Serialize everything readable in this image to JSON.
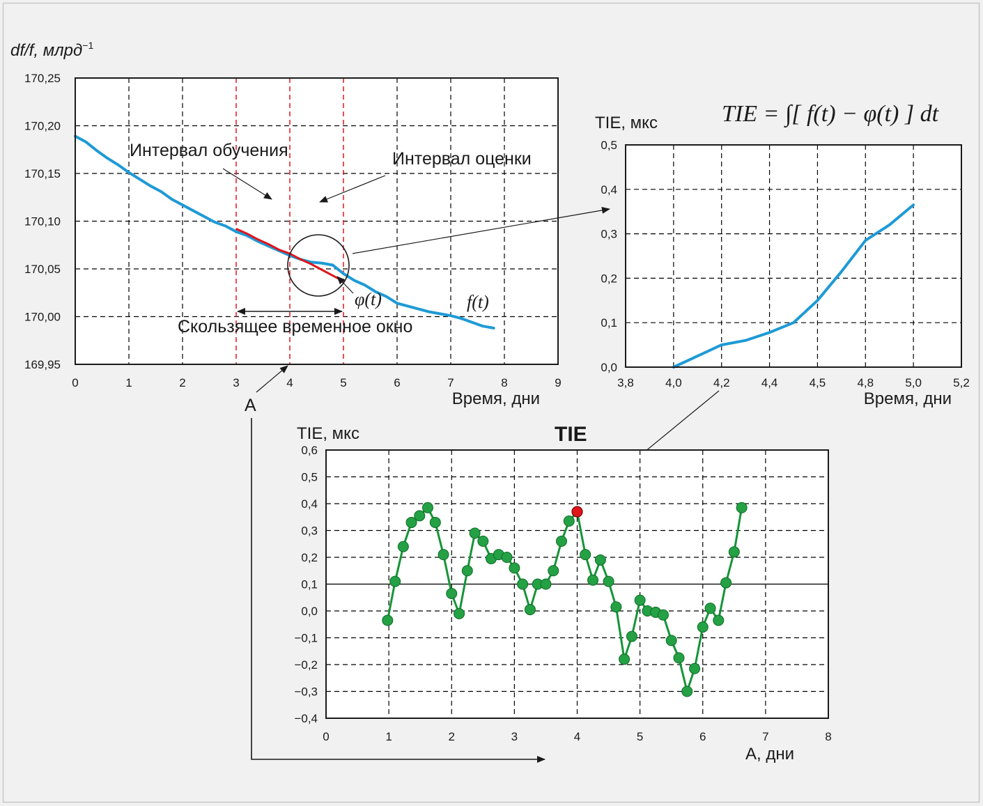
{
  "colors": {
    "background": "#f1f1f1",
    "frame": "#c8c8c8",
    "fCurve": "#1e9ad6",
    "phiCurve": "#e0151b",
    "window": "#e0151b",
    "tieLine": "#169437",
    "tieMarker": "#24a144",
    "highlight": "#e0151b",
    "grid": "#000000"
  },
  "chart_data": [
    {
      "id": "frequency",
      "type": "line",
      "ylabel": "df/f, млрд",
      "ylabel_sup": "−1",
      "xlabel": "Время, дни",
      "xlim": [
        0,
        9
      ],
      "ylim": [
        169.95,
        170.25
      ],
      "xticks": [
        0,
        1,
        2,
        3,
        4,
        5,
        6,
        7,
        8,
        9
      ],
      "xtick_labels": [
        "0",
        "1",
        "2",
        "3",
        "4",
        "5",
        "6",
        "7",
        "8",
        "9"
      ],
      "yticks": [
        169.95,
        170.0,
        170.05,
        170.1,
        170.15,
        170.2,
        170.25
      ],
      "ytick_labels": [
        "169,95",
        "170,00",
        "170,05",
        "170,10",
        "170,15",
        "170,20",
        "170,25"
      ],
      "grid": true,
      "window_lines": [
        3,
        4,
        5
      ],
      "window_label": "Скользящее временное окно",
      "training_label": "Интервал обучения",
      "evaluation_label": "Интервал оценки",
      "marker_label": "A",
      "series": [
        {
          "name": "f(t)",
          "x": [
            0,
            0.2,
            0.4,
            0.6,
            0.8,
            1.0,
            1.2,
            1.4,
            1.6,
            1.8,
            2.0,
            2.2,
            2.4,
            2.6,
            2.8,
            3.0,
            3.2,
            3.4,
            3.6,
            3.8,
            4.0,
            4.2,
            4.4,
            4.6,
            4.8,
            5.0,
            5.2,
            5.4,
            5.6,
            5.8,
            6.0,
            6.2,
            6.4,
            6.6,
            6.8,
            7.0,
            7.2,
            7.4,
            7.6,
            7.8
          ],
          "y": [
            170.189,
            170.183,
            170.174,
            170.166,
            170.159,
            170.151,
            170.144,
            170.137,
            170.131,
            170.123,
            170.117,
            170.111,
            170.105,
            170.099,
            170.095,
            170.089,
            170.085,
            170.079,
            170.074,
            170.069,
            170.064,
            170.06,
            170.057,
            170.056,
            170.054,
            170.045,
            170.038,
            170.033,
            170.026,
            170.021,
            170.014,
            170.011,
            170.008,
            170.005,
            170.003,
            170.001,
            169.998,
            169.994,
            169.99,
            169.988
          ]
        },
        {
          "name": "φ(t)",
          "x": [
            3.0,
            3.2,
            3.4,
            3.6,
            3.8,
            4.0,
            4.2,
            4.4,
            4.6,
            4.8,
            5.0
          ],
          "y": [
            170.092,
            170.087,
            170.081,
            170.076,
            170.07,
            170.066,
            170.06,
            170.055,
            170.049,
            170.043,
            170.037
          ]
        }
      ],
      "labels": {
        "f": "f(t)",
        "phi": "φ(t)"
      }
    },
    {
      "id": "tie-window",
      "type": "line",
      "ylabel": "TIE, мкс",
      "xlabel": "Время, дни",
      "formula": "TIE = ∫[ f(t) − φ(t) ] dt",
      "xtick_labels": [
        "3,8",
        "4,0",
        "4,2",
        "4,4",
        "4,5",
        "4,8",
        "5,0",
        "5,2"
      ],
      "yticks": [
        0,
        0.1,
        0.2,
        0.3,
        0.4,
        0.5
      ],
      "ytick_labels": [
        "0,0",
        "0,1",
        "0,2",
        "0,3",
        "0,4",
        "0,5"
      ],
      "ylim": [
        0,
        0.5
      ],
      "grid": true,
      "series": [
        {
          "name": "TIE",
          "x": [
            4.0,
            4.1,
            4.2,
            4.3,
            4.4,
            4.5,
            4.6,
            4.7,
            4.8,
            4.9,
            5.0
          ],
          "y": [
            0.0,
            0.025,
            0.05,
            0.06,
            0.078,
            0.1,
            0.15,
            0.215,
            0.285,
            0.32,
            0.365
          ]
        }
      ]
    },
    {
      "id": "tie-sliding",
      "type": "line",
      "title": "TIE",
      "ylabel": "TIE, мкс",
      "xlabel": "A, дни",
      "xlim": [
        0,
        8
      ],
      "ylim": [
        -0.4,
        0.6
      ],
      "xticks": [
        0,
        1,
        2,
        3,
        4,
        5,
        6,
        7,
        8
      ],
      "xtick_labels": [
        "0",
        "1",
        "2",
        "3",
        "4",
        "5",
        "6",
        "7",
        "8"
      ],
      "yticks": [
        -0.4,
        -0.3,
        -0.2,
        -0.1,
        0.0,
        0.1,
        0.2,
        0.3,
        0.4,
        0.5,
        0.6
      ],
      "ytick_labels": [
        "−0,4",
        "−0,3",
        "−0,2",
        "−0,1",
        "0,0",
        "0,1",
        "0,2",
        "0,3",
        "0,4",
        "0,5",
        "0,6"
      ],
      "grid": true,
      "reference_line": 0.1,
      "highlight_x": 4.0,
      "highlight_y": 0.37,
      "series": [
        {
          "name": "TIE",
          "x": [
            0.98,
            1.1,
            1.23,
            1.36,
            1.49,
            1.62,
            1.74,
            1.87,
            2.0,
            2.12,
            2.25,
            2.37,
            2.5,
            2.63,
            2.75,
            2.88,
            3.0,
            3.13,
            3.25,
            3.37,
            3.5,
            3.62,
            3.75,
            3.87,
            4.0,
            4.13,
            4.25,
            4.37,
            4.5,
            4.62,
            4.75,
            4.87,
            5.0,
            5.12,
            5.25,
            5.37,
            5.5,
            5.62,
            5.75,
            5.87,
            6.0,
            6.12,
            6.25,
            6.37,
            6.5,
            6.62
          ],
          "y": [
            -0.035,
            0.11,
            0.24,
            0.33,
            0.355,
            0.385,
            0.33,
            0.21,
            0.065,
            -0.01,
            0.15,
            0.29,
            0.26,
            0.195,
            0.21,
            0.2,
            0.16,
            0.1,
            0.005,
            0.1,
            0.1,
            0.15,
            0.26,
            0.335,
            0.37,
            0.21,
            0.115,
            0.19,
            0.11,
            0.015,
            -0.18,
            -0.095,
            0.04,
            0.0,
            -0.005,
            -0.015,
            -0.11,
            -0.175,
            -0.3,
            -0.215,
            -0.06,
            0.01,
            -0.035,
            0.105,
            0.22,
            0.385
          ]
        }
      ]
    }
  ]
}
